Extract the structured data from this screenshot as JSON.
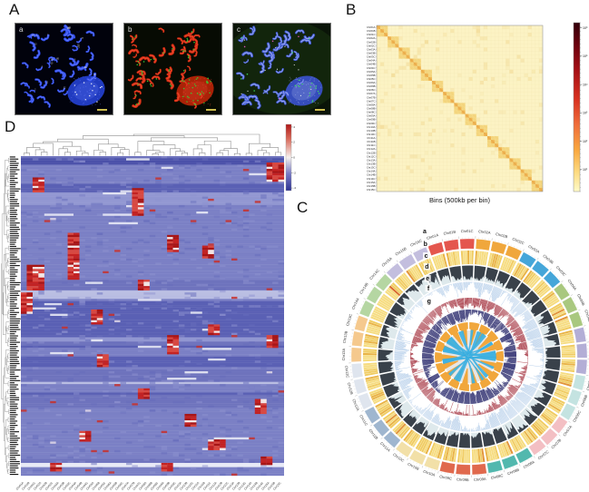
{
  "panels": {
    "A": {
      "label": "A",
      "images": [
        {
          "label": "a"
        },
        {
          "label": "b"
        },
        {
          "label": "c"
        }
      ]
    },
    "B": {
      "label": "B",
      "xlabel": "Bins (500kb per bin)",
      "colorbar_ticks": [
        "10⁶",
        "10⁵",
        "10⁴",
        "10³",
        "10²",
        "10¹"
      ]
    },
    "C": {
      "label": "C",
      "track_labels": [
        "a",
        "b",
        "c",
        "d",
        "e",
        "f",
        "g"
      ]
    },
    "D": {
      "label": "D",
      "colorbar_ticks": [
        "4",
        "2",
        "0",
        "-2",
        "-4"
      ]
    }
  },
  "chromosomes": [
    "Chr01A",
    "Chr01B",
    "Chr01C",
    "Chr02A",
    "Chr02B",
    "Chr02C",
    "Chr03A",
    "Chr03B",
    "Chr03C",
    "Chr04A",
    "Chr04B",
    "Chr04C",
    "Chr05A",
    "Chr05B",
    "Chr05C",
    "Chr06A",
    "Chr06B",
    "Chr06C",
    "Chr07A",
    "Chr07B",
    "Chr07C",
    "Chr08A",
    "Chr08B",
    "Chr08C",
    "Chr09A",
    "Chr09B",
    "Chr09C",
    "Chr10A",
    "Chr10B",
    "Chr10C",
    "Chr11A",
    "Chr11B",
    "Chr11C",
    "Chr12A",
    "Chr12B",
    "Chr12C",
    "Chr13A",
    "Chr13B",
    "Chr13C",
    "Chr14A",
    "Chr14B",
    "Chr14C",
    "Chr15A",
    "Chr15B",
    "Chr15C"
  ],
  "colors": {
    "group_palette": [
      "#e4564e",
      "#f0a73c",
      "#45a6d9",
      "#a9c87f",
      "#b3aed6",
      "#c4e3e1",
      "#f3bfc3",
      "#52b8ae",
      "#e0694d",
      "#f2e0a8",
      "#9fb6cf",
      "#dfe5ee",
      "#f5c98e",
      "#b5d6a2",
      "#c3bede"
    ],
    "hic_bg": "#fcf3c4",
    "hic_block": "#f8e4a0",
    "hic_diag": "#f2bc5a",
    "hic_hatch": "#e09638",
    "heat_base": "#7b80c5",
    "heat_red": "#c32222",
    "ring_b": "#f5dc80",
    "ring_c_bar": "#39414a",
    "ring_c_bg": "#dee9ec",
    "ring_d_bar": "#a9c7e6",
    "ring_e_bar": "#9c1f2d",
    "ring_f_bar": "#45457f",
    "ring_g": "#f1a73c",
    "ribbon": "#3eb3e4",
    "center": "#e6e6e6",
    "micro": [
      {
        "bg": "#01020c",
        "chr": "#2b48e8",
        "hi": "#6f86ff",
        "nuc": "#2440d0",
        "dot": "#ffffff"
      },
      {
        "bg": "#070b03",
        "chr": "#d0290f",
        "hi": "#f2543a",
        "nuc": "#b82508",
        "dot": "#35d035"
      },
      {
        "bg": "#0a1408",
        "chr": "#3e57d8",
        "hi": "#b8c4f0",
        "nuc": "#3a50cc",
        "dot": "#40e060",
        "dot2": "#e858c8"
      }
    ]
  },
  "heat_hotspots": [
    [
      42,
      0.02,
      3,
      9
    ],
    [
      2,
      0.07,
      2,
      7
    ],
    [
      19,
      0.1,
      2,
      13
    ],
    [
      8,
      0.24,
      2,
      22
    ],
    [
      25,
      0.25,
      2,
      8
    ],
    [
      31,
      0.28,
      2,
      6
    ],
    [
      1,
      0.34,
      3,
      12
    ],
    [
      20,
      0.39,
      2,
      5
    ],
    [
      12,
      0.48,
      2,
      7
    ],
    [
      0,
      0.43,
      2,
      10
    ],
    [
      25,
      0.56,
      2,
      9
    ],
    [
      32,
      0.53,
      2,
      5
    ],
    [
      42,
      0.56,
      2,
      6
    ],
    [
      13,
      0.62,
      2,
      6
    ],
    [
      40,
      0.76,
      2,
      7
    ],
    [
      20,
      0.73,
      2,
      5
    ],
    [
      28,
      0.81,
      2,
      6
    ],
    [
      10,
      0.86,
      2,
      5
    ],
    [
      32,
      0.89,
      3,
      5
    ],
    [
      41,
      0.94,
      2,
      4
    ],
    [
      24,
      0.96,
      2,
      4
    ],
    [
      5,
      0.96,
      2,
      4
    ]
  ]
}
